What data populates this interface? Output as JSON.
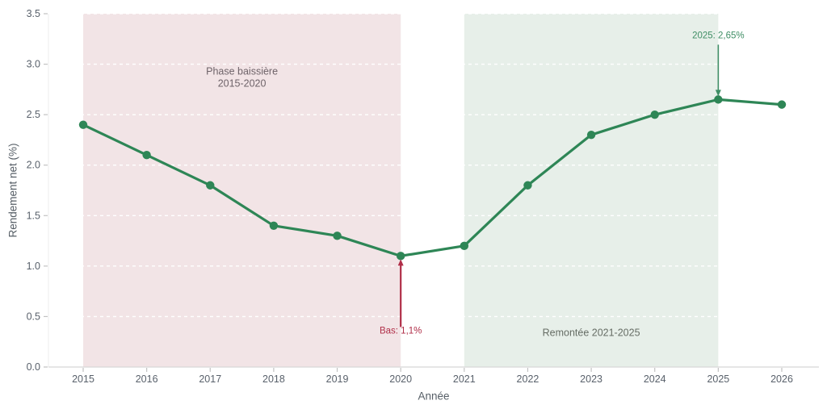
{
  "chart_data": {
    "type": "line",
    "title": "",
    "xlabel": "Année",
    "ylabel": "Rendement net (%)",
    "x": [
      2015,
      2016,
      2017,
      2018,
      2019,
      2020,
      2021,
      2022,
      2023,
      2024,
      2025,
      2026
    ],
    "values": [
      2.4,
      2.1,
      1.8,
      1.4,
      1.3,
      1.1,
      1.2,
      1.8,
      2.3,
      2.5,
      2.65,
      2.6
    ],
    "ylim": [
      0,
      3.5
    ],
    "yticks": [
      0,
      0.5,
      1,
      1.5,
      2,
      2.5,
      3,
      3.5
    ],
    "grid": "horizontal dashed",
    "legend": "none",
    "line_color": "#2e8656",
    "marker": "circle",
    "regions": [
      {
        "label": "Phase baissière\n2015-2020",
        "x_start": 2015,
        "x_end": 2020,
        "color": "#f2e4e6",
        "label_color": "#6e6369",
        "label_x": 2017.5,
        "label_y": 2.87
      },
      {
        "label": "Remontée 2021-2025",
        "x_start": 2021,
        "x_end": 2025,
        "color": "#e7efe9",
        "label_color": "#666d65",
        "label_x": 2023,
        "label_y": 0.34
      }
    ],
    "annotations": [
      {
        "text": "Bas: 1,1%",
        "x": 2020,
        "y": 1.1,
        "color": "#b02e48",
        "direction": "up"
      },
      {
        "text": "2025: 2,65%",
        "x": 2025,
        "y": 2.65,
        "color": "#3f8e65",
        "direction": "down"
      }
    ]
  }
}
